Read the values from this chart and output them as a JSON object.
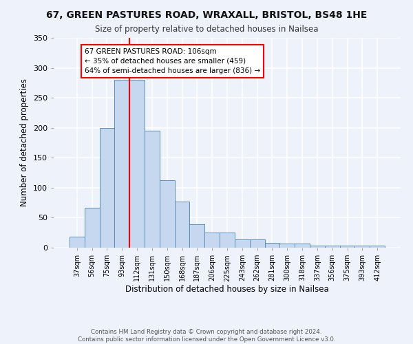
{
  "title_line1": "67, GREEN PASTURES ROAD, WRAXALL, BRISTOL, BS48 1HE",
  "title_line2": "Size of property relative to detached houses in Nailsea",
  "xlabel": "Distribution of detached houses by size in Nailsea",
  "ylabel": "Number of detached properties",
  "bar_labels": [
    "37sqm",
    "56sqm",
    "75sqm",
    "93sqm",
    "112sqm",
    "131sqm",
    "150sqm",
    "168sqm",
    "187sqm",
    "206sqm",
    "225sqm",
    "243sqm",
    "262sqm",
    "281sqm",
    "300sqm",
    "318sqm",
    "337sqm",
    "356sqm",
    "375sqm",
    "393sqm",
    "412sqm"
  ],
  "bar_values": [
    18,
    67,
    200,
    280,
    280,
    195,
    113,
    77,
    39,
    25,
    25,
    14,
    14,
    8,
    7,
    7,
    4,
    3,
    3,
    3,
    4
  ],
  "bar_color": "#c5d8f0",
  "bar_edge_color": "#5b8db8",
  "red_line_index": 3.5,
  "annotation_text": "67 GREEN PASTURES ROAD: 106sqm\n← 35% of detached houses are smaller (459)\n64% of semi-detached houses are larger (836) →",
  "annotation_box_color": "white",
  "annotation_box_edge": "red",
  "ylim": [
    0,
    350
  ],
  "yticks": [
    0,
    50,
    100,
    150,
    200,
    250,
    300,
    350
  ],
  "footer_line1": "Contains HM Land Registry data © Crown copyright and database right 2024.",
  "footer_line2": "Contains public sector information licensed under the Open Government Licence v3.0.",
  "bg_color": "#eef2fb"
}
